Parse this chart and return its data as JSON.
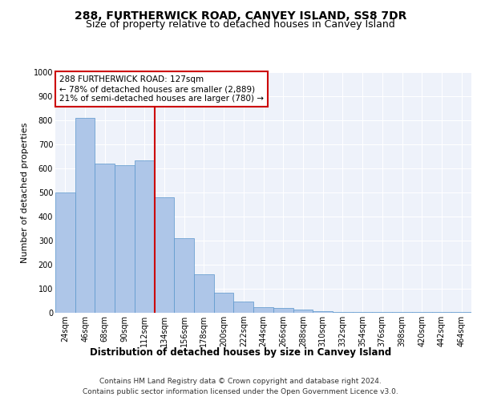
{
  "title": "288, FURTHERWICK ROAD, CANVEY ISLAND, SS8 7DR",
  "subtitle": "Size of property relative to detached houses in Canvey Island",
  "xlabel": "Distribution of detached houses by size in Canvey Island",
  "ylabel": "Number of detached properties",
  "footer1": "Contains HM Land Registry data © Crown copyright and database right 2024.",
  "footer2": "Contains public sector information licensed under the Open Government Licence v3.0.",
  "annotation_line1": "288 FURTHERWICK ROAD: 127sqm",
  "annotation_line2": "← 78% of detached houses are smaller (2,889)",
  "annotation_line3": "21% of semi-detached houses are larger (780) →",
  "bar_values": [
    500,
    810,
    620,
    615,
    635,
    480,
    310,
    160,
    82,
    46,
    22,
    20,
    12,
    8,
    5,
    4,
    4,
    4,
    4,
    4,
    4
  ],
  "categories": [
    "24sqm",
    "46sqm",
    "68sqm",
    "90sqm",
    "112sqm",
    "134sqm",
    "156sqm",
    "178sqm",
    "200sqm",
    "222sqm",
    "244sqm",
    "266sqm",
    "288sqm",
    "310sqm",
    "332sqm",
    "354sqm",
    "376sqm",
    "398sqm",
    "420sqm",
    "442sqm",
    "464sqm"
  ],
  "bar_color": "#aec6e8",
  "bar_edge_color": "#5a96cc",
  "bar_edge_width": 0.5,
  "vline_color": "#cc0000",
  "ylim": [
    0,
    1000
  ],
  "yticks": [
    0,
    100,
    200,
    300,
    400,
    500,
    600,
    700,
    800,
    900,
    1000
  ],
  "bg_color": "#eef2fa",
  "grid_color": "#ffffff",
  "annotation_box_color": "#cc0000",
  "title_fontsize": 10,
  "subtitle_fontsize": 9,
  "axis_label_fontsize": 8.5,
  "ylabel_fontsize": 8,
  "tick_fontsize": 7,
  "footer_fontsize": 6.5,
  "annotation_fontsize": 7.5
}
